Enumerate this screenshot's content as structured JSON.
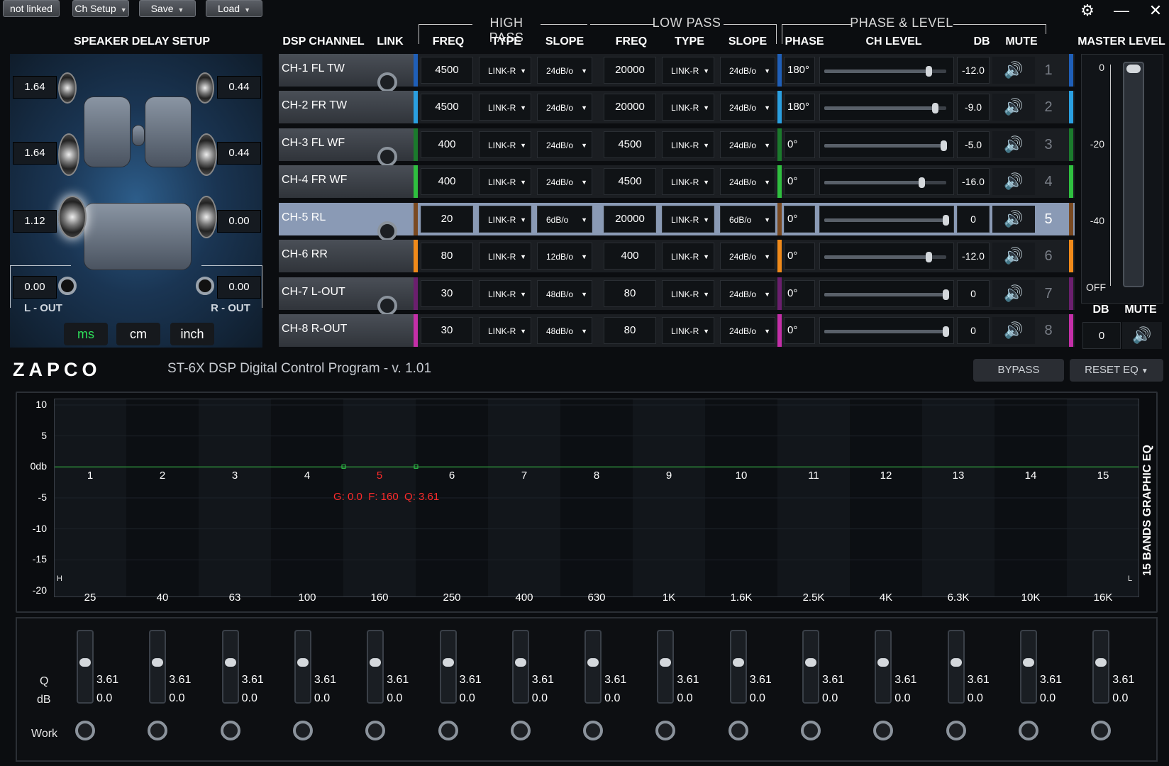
{
  "topbar": {
    "buttons": [
      "not linked",
      "Ch Setup",
      "Save",
      "Load"
    ],
    "settings_icon": "gear-icon",
    "minimize_icon": "minimize-icon",
    "close_icon": "close-icon"
  },
  "speaker_delay": {
    "title": "SPEAKER DELAY SETUP",
    "front_left_tw": "1.64",
    "front_right_tw": "0.44",
    "front_left_wf": "1.64",
    "front_right_wf": "0.44",
    "rear_left": "1.12",
    "rear_right": "0.00",
    "l_out": "0.00",
    "r_out": "0.00",
    "l_out_label": "L - OUT",
    "r_out_label": "R - OUT",
    "units": [
      "ms",
      "cm",
      "inch"
    ],
    "selected_unit": "ms"
  },
  "headers": {
    "dsp_channel": "DSP CHANNEL",
    "link": "LINK",
    "high_pass": "HIGH PASS",
    "low_pass": "LOW PASS",
    "phase_level": "PHASE & LEVEL",
    "freq": "FREQ",
    "type": "TYPE",
    "slope": "SLOPE",
    "phase": "PHASE",
    "ch_level": "CH LEVEL",
    "db": "DB",
    "mute": "MUTE",
    "master_level": "MASTER LEVEL"
  },
  "channels": [
    {
      "name": "CH-1 FL TW",
      "color": "#1f5fb8",
      "hp_freq": "4500",
      "hp_type": "LINK-R",
      "hp_slope": "24dB/o",
      "lp_freq": "20000",
      "lp_type": "LINK-R",
      "lp_slope": "24dB/o",
      "phase": "180°",
      "level": 0.86,
      "db": "-12.0",
      "num": "1"
    },
    {
      "name": "CH-2 FR TW",
      "color": "#2a9fe0",
      "hp_freq": "4500",
      "hp_type": "LINK-R",
      "hp_slope": "24dB/o",
      "lp_freq": "20000",
      "lp_type": "LINK-R",
      "lp_slope": "24dB/o",
      "phase": "180°",
      "level": 0.91,
      "db": "-9.0",
      "num": "2"
    },
    {
      "name": "CH-3 FL WF",
      "color": "#1b7a2c",
      "hp_freq": "400",
      "hp_type": "LINK-R",
      "hp_slope": "24dB/o",
      "lp_freq": "4500",
      "lp_type": "LINK-R",
      "lp_slope": "24dB/o",
      "phase": "0°",
      "level": 0.98,
      "db": "-5.0",
      "num": "3"
    },
    {
      "name": "CH-4 FR WF",
      "color": "#2fbf3f",
      "hp_freq": "400",
      "hp_type": "LINK-R",
      "hp_slope": "24dB/o",
      "lp_freq": "4500",
      "lp_type": "LINK-R",
      "lp_slope": "24dB/o",
      "phase": "0°",
      "level": 0.8,
      "db": "-16.0",
      "num": "4"
    },
    {
      "name": "CH-5 RL",
      "color": "#7a4a22",
      "hp_freq": "20",
      "hp_type": "LINK-R",
      "hp_slope": "6dB/o",
      "lp_freq": "20000",
      "lp_type": "LINK-R",
      "lp_slope": "6dB/o",
      "phase": "0°",
      "level": 1.0,
      "db": "0",
      "num": "5",
      "selected": true
    },
    {
      "name": "CH-6 RR",
      "color": "#f08a1a",
      "hp_freq": "80",
      "hp_type": "LINK-R",
      "hp_slope": "12dB/o",
      "lp_freq": "400",
      "lp_type": "LINK-R",
      "lp_slope": "24dB/o",
      "phase": "0°",
      "level": 0.86,
      "db": "-12.0",
      "num": "6"
    },
    {
      "name": "CH-7 L-OUT",
      "color": "#6b1f6e",
      "hp_freq": "30",
      "hp_type": "LINK-R",
      "hp_slope": "48dB/o",
      "lp_freq": "80",
      "lp_type": "LINK-R",
      "lp_slope": "24dB/o",
      "phase": "0°",
      "level": 1.0,
      "db": "0",
      "num": "7"
    },
    {
      "name": "CH-8 R-OUT",
      "color": "#c42fa8",
      "hp_freq": "30",
      "hp_type": "LINK-R",
      "hp_slope": "48dB/o",
      "lp_freq": "80",
      "lp_type": "LINK-R",
      "lp_slope": "24dB/o",
      "phase": "0°",
      "level": 1.0,
      "db": "0",
      "num": "8"
    }
  ],
  "master": {
    "ticks": [
      "0",
      "-20",
      "-40",
      "OFF"
    ],
    "db_label": "DB",
    "mute_label": "MUTE",
    "db_value": "0",
    "level": 1.0
  },
  "brand": {
    "logo": "ZAPCO",
    "title": "ST-6X DSP Digital Control Program - v. 1.01"
  },
  "eq_buttons": {
    "bypass": "BYPASS",
    "reset": "RESET EQ"
  },
  "eq": {
    "side_title": "15 BANDS GRAPHIC EQ",
    "y_ticks": [
      "10",
      "5",
      "0db",
      "-5",
      "-10",
      "-15",
      "-20"
    ],
    "band_numbers": [
      "1",
      "2",
      "3",
      "4",
      "5",
      "6",
      "7",
      "8",
      "9",
      "10",
      "11",
      "12",
      "13",
      "14",
      "15"
    ],
    "freqs": [
      "25",
      "40",
      "63",
      "100",
      "160",
      "250",
      "400",
      "630",
      "1K",
      "1.6K",
      "2.5K",
      "4K",
      "6.3K",
      "10K",
      "16K"
    ],
    "selected_band": "5",
    "info": "G: 0.0  F: 160  Q: 3.61",
    "left_marker": "H",
    "right_marker": "L"
  },
  "bands": {
    "q_label": "Q",
    "db_label": "dB",
    "work_label": "Work",
    "q_values": [
      "3.61",
      "3.61",
      "3.61",
      "3.61",
      "3.61",
      "3.61",
      "3.61",
      "3.61",
      "3.61",
      "3.61",
      "3.61",
      "3.61",
      "3.61",
      "3.61",
      "3.61"
    ],
    "db_values": [
      "0.0",
      "0.0",
      "0.0",
      "0.0",
      "0.0",
      "0.0",
      "0.0",
      "0.0",
      "0.0",
      "0.0",
      "0.0",
      "0.0",
      "0.0",
      "0.0",
      "0.0"
    ]
  }
}
